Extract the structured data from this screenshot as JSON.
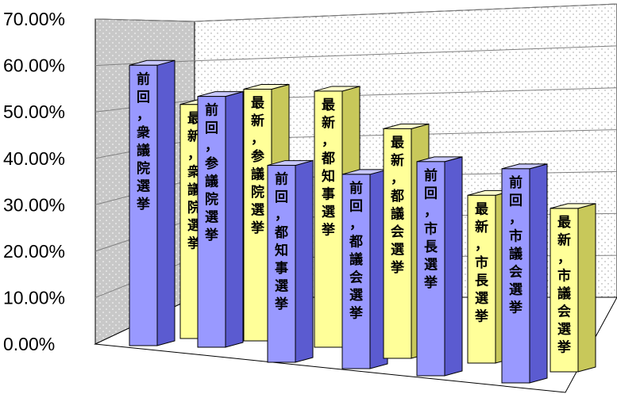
{
  "chart_data": {
    "type": "bar",
    "three_d": true,
    "ylim": [
      0,
      70
    ],
    "y_tick_labels": [
      "0.00%",
      "10.00%",
      "20.00%",
      "30.00%",
      "40.00%",
      "50.00%",
      "60.00%",
      "70.00%"
    ],
    "y_tick_values": [
      0,
      10,
      20,
      30,
      40,
      50,
      60,
      70
    ],
    "grid": true,
    "colors": {
      "previous": "#9999ff",
      "latest": "#ffff99",
      "back_wall_left": "#c0c0c0",
      "back_wall": "#ffffff",
      "gridline": "#808080"
    },
    "bars": [
      {
        "label": "前回，衆議院選挙",
        "value": 63.5,
        "series": "previous"
      },
      {
        "label": "最新，衆議院選挙",
        "value": 53.0,
        "series": "latest"
      },
      {
        "label": "前回，参議院選挙",
        "value": 56.8,
        "series": "previous"
      },
      {
        "label": "最新，参議院選挙",
        "value": 57.0,
        "series": "latest"
      },
      {
        "label": "前回，都知事選挙",
        "value": 44.6,
        "series": "previous"
      },
      {
        "label": "最新，都知事選挙",
        "value": 58.0,
        "series": "latest"
      },
      {
        "label": "前回，都議会選挙",
        "value": 44.0,
        "series": "previous"
      },
      {
        "label": "最新，都議会選挙",
        "value": 52.0,
        "series": "latest"
      },
      {
        "label": "前回，市長選挙",
        "value": 48.5,
        "series": "previous"
      },
      {
        "label": "最新，市長選挙",
        "value": 38.0,
        "series": "latest"
      },
      {
        "label": "前回，市議会選挙",
        "value": 48.5,
        "series": "previous"
      },
      {
        "label": "最新，市議会選挙",
        "value": 37.0,
        "series": "latest"
      }
    ]
  }
}
